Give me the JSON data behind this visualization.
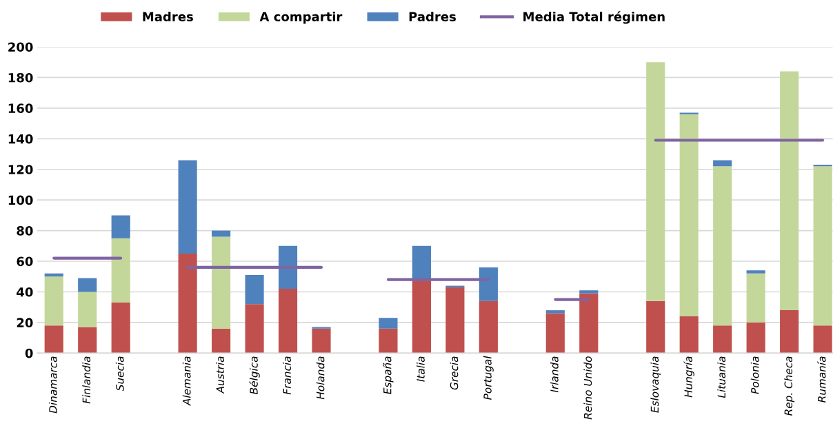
{
  "chart_data": {
    "type": "bar",
    "stacked": true,
    "categories": [
      "Dinamarca",
      "Finlandia",
      "Suecia",
      null,
      "Alemania",
      "Austria",
      "Bélgica",
      "Francia",
      "Holanda",
      null,
      "España",
      "Italia",
      "Grecia",
      "Portugal",
      null,
      "Irlanda",
      "Reino Unido",
      null,
      "Eslovaquia",
      "Hungría",
      "Lituania",
      "Polonia",
      "Rep. Checa",
      "Rumanía"
    ],
    "series": [
      {
        "name": "Madres",
        "color": "#c0504d",
        "values": [
          18,
          17,
          33,
          null,
          65,
          16,
          32,
          42,
          16,
          null,
          16,
          47,
          43,
          34,
          null,
          26,
          39,
          null,
          34,
          24,
          18,
          20,
          28,
          18
        ]
      },
      {
        "name": "A compartir",
        "color": "#c4d79b",
        "values": [
          32,
          23,
          42,
          null,
          0,
          60,
          0,
          0,
          0,
          null,
          0,
          0,
          0,
          0,
          null,
          0,
          0,
          null,
          156,
          132,
          104,
          32,
          156,
          104
        ]
      },
      {
        "name": "Padres",
        "color": "#4f81bd",
        "values": [
          2,
          9,
          15,
          null,
          61,
          4,
          19,
          28,
          1,
          null,
          7,
          23,
          1,
          22,
          null,
          2,
          2,
          null,
          0,
          1,
          4,
          2,
          0,
          1
        ]
      },
      {
        "name": "Media Total régimen",
        "type": "line",
        "color": "#8064a2",
        "values": [
          62,
          62,
          62,
          null,
          56,
          56,
          56,
          56,
          56,
          null,
          48,
          48,
          48,
          48,
          null,
          35,
          35,
          null,
          139,
          139,
          139,
          139,
          139,
          139
        ]
      }
    ],
    "ylim": [
      0,
      200
    ],
    "yticks": [
      0,
      20,
      40,
      60,
      80,
      100,
      120,
      140,
      160,
      180,
      200
    ],
    "grid": "y",
    "legend": "top"
  }
}
